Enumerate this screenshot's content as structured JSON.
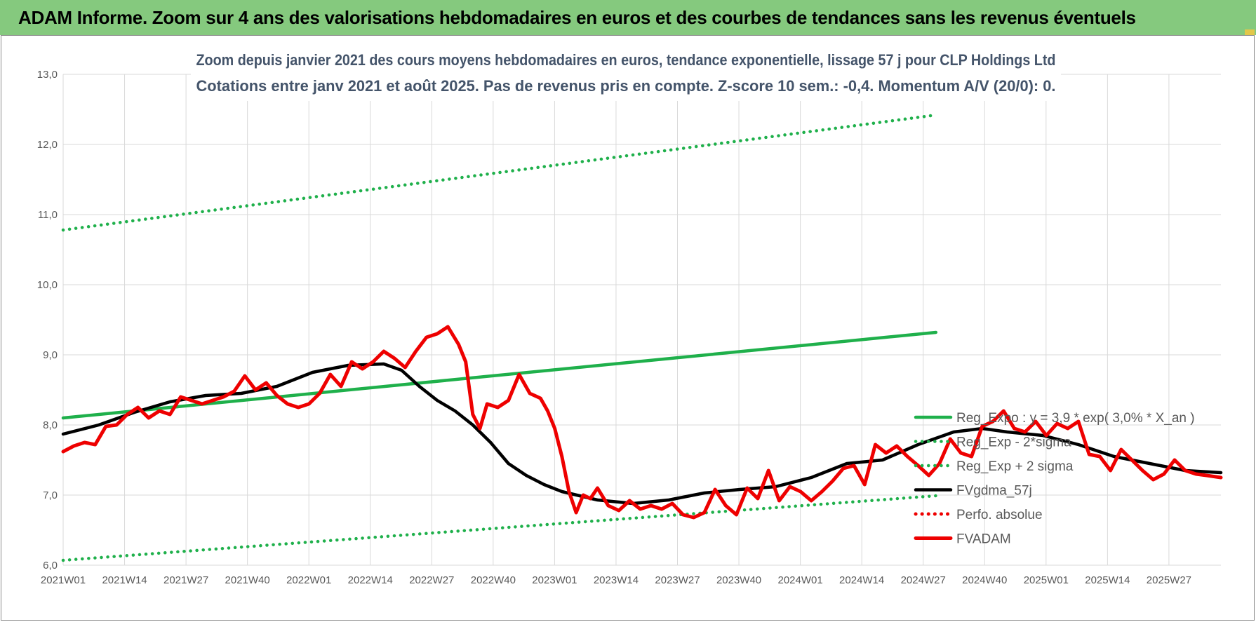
{
  "banner": {
    "title": "ADAM Informe. Zoom sur 4 ans des valorisations hebdomadaires en euros et des courbes de tendances sans les revenus éventuels"
  },
  "colors": {
    "banner_bg": "#85c97e",
    "trend_green": "#1fb04b",
    "price_red": "#ee0000",
    "smooth_black": "#000000",
    "title_text": "#44546a",
    "grid": "#d9d9d9"
  },
  "chart_data": {
    "type": "line",
    "title": "Zoom depuis janvier 2021 des cours moyens hebdomadaires en euros, tendance exponentielle, lissage 57 j pour CLP Holdings Ltd",
    "subtitle": "Cotations entre janv 2021 et août 2025.  Pas de revenus pris en compte. Z-score 10 sem.: -0,4. Momentum A/V (20/0): 0.",
    "xlabel": "",
    "ylabel": "",
    "ylim": [
      6.0,
      13.0
    ],
    "y_ticks": [
      "6,0",
      "7,0",
      "8,0",
      "9,0",
      "10,0",
      "11,0",
      "12,0",
      "13,0"
    ],
    "x_ticks": [
      "2021W01",
      "2021W14",
      "2021W27",
      "2021W40",
      "2022W01",
      "2022W14",
      "2022W27",
      "2022W40",
      "2023W01",
      "2023W14",
      "2023W27",
      "2023W40",
      "2024W01",
      "2024W14",
      "2024W27",
      "2024W40",
      "2025W01",
      "2025W14",
      "2025W27"
    ],
    "week_count": 246,
    "grid": true,
    "legend_position": "right",
    "series": [
      {
        "name": "Reg_Expo : y = 3,9 * exp( 3,0% *  X_an )",
        "style": "solid",
        "color": "#1fb04b",
        "points": [
          [
            0,
            8.1
          ],
          [
            245,
            9.32
          ]
        ]
      },
      {
        "name": "Reg_Exp - 2*sigma",
        "style": "dotted",
        "color": "#1fb04b",
        "points": [
          [
            0,
            6.07
          ],
          [
            245,
            6.99
          ]
        ]
      },
      {
        "name": "Reg_Exp + 2 sigma",
        "style": "dotted",
        "color": "#1fb04b",
        "points": [
          [
            0,
            10.78
          ],
          [
            245,
            12.42
          ]
        ]
      },
      {
        "name": "FVgdma_57j",
        "style": "solid",
        "color": "#000000",
        "points": [
          [
            0,
            7.87
          ],
          [
            10,
            8.0
          ],
          [
            20,
            8.18
          ],
          [
            30,
            8.33
          ],
          [
            40,
            8.42
          ],
          [
            50,
            8.45
          ],
          [
            60,
            8.55
          ],
          [
            70,
            8.75
          ],
          [
            80,
            8.85
          ],
          [
            90,
            8.87
          ],
          [
            95,
            8.78
          ],
          [
            100,
            8.55
          ],
          [
            105,
            8.35
          ],
          [
            110,
            8.2
          ],
          [
            115,
            8.0
          ],
          [
            120,
            7.75
          ],
          [
            125,
            7.45
          ],
          [
            130,
            7.28
          ],
          [
            135,
            7.15
          ],
          [
            140,
            7.05
          ],
          [
            150,
            6.93
          ],
          [
            160,
            6.88
          ],
          [
            170,
            6.93
          ],
          [
            180,
            7.03
          ],
          [
            190,
            7.08
          ],
          [
            200,
            7.12
          ],
          [
            210,
            7.25
          ],
          [
            220,
            7.45
          ],
          [
            230,
            7.5
          ],
          [
            240,
            7.72
          ],
          [
            250,
            7.9
          ],
          [
            258,
            7.95
          ],
          [
            265,
            7.9
          ],
          [
            275,
            7.85
          ],
          [
            285,
            7.72
          ],
          [
            295,
            7.55
          ],
          [
            305,
            7.45
          ],
          [
            315,
            7.35
          ],
          [
            325,
            7.32
          ]
        ]
      },
      {
        "name": "Perfo. absolue",
        "style": "dotted",
        "color": "#ee0000",
        "points": []
      },
      {
        "name": "FVADAM",
        "style": "solid",
        "color": "#ee0000",
        "points": [
          [
            0,
            7.62
          ],
          [
            3,
            7.7
          ],
          [
            6,
            7.75
          ],
          [
            9,
            7.72
          ],
          [
            12,
            7.98
          ],
          [
            15,
            8.0
          ],
          [
            18,
            8.15
          ],
          [
            21,
            8.25
          ],
          [
            24,
            8.1
          ],
          [
            27,
            8.2
          ],
          [
            30,
            8.15
          ],
          [
            33,
            8.4
          ],
          [
            36,
            8.35
          ],
          [
            39,
            8.3
          ],
          [
            42,
            8.35
          ],
          [
            45,
            8.4
          ],
          [
            48,
            8.48
          ],
          [
            51,
            8.7
          ],
          [
            54,
            8.5
          ],
          [
            57,
            8.6
          ],
          [
            60,
            8.42
          ],
          [
            63,
            8.3
          ],
          [
            66,
            8.25
          ],
          [
            69,
            8.3
          ],
          [
            72,
            8.45
          ],
          [
            75,
            8.72
          ],
          [
            78,
            8.55
          ],
          [
            81,
            8.9
          ],
          [
            84,
            8.8
          ],
          [
            87,
            8.9
          ],
          [
            90,
            9.05
          ],
          [
            93,
            8.95
          ],
          [
            96,
            8.82
          ],
          [
            99,
            9.05
          ],
          [
            102,
            9.25
          ],
          [
            105,
            9.3
          ],
          [
            108,
            9.4
          ],
          [
            111,
            9.15
          ],
          [
            113,
            8.9
          ],
          [
            115,
            8.15
          ],
          [
            117,
            7.95
          ],
          [
            119,
            8.3
          ],
          [
            122,
            8.25
          ],
          [
            125,
            8.35
          ],
          [
            128,
            8.72
          ],
          [
            131,
            8.45
          ],
          [
            134,
            8.38
          ],
          [
            136,
            8.2
          ],
          [
            138,
            7.95
          ],
          [
            140,
            7.55
          ],
          [
            142,
            7.05
          ],
          [
            144,
            6.75
          ],
          [
            146,
            7.0
          ],
          [
            148,
            6.95
          ],
          [
            150,
            7.1
          ],
          [
            153,
            6.85
          ],
          [
            156,
            6.78
          ],
          [
            159,
            6.92
          ],
          [
            162,
            6.8
          ],
          [
            165,
            6.85
          ],
          [
            168,
            6.8
          ],
          [
            171,
            6.88
          ],
          [
            174,
            6.72
          ],
          [
            177,
            6.68
          ],
          [
            180,
            6.75
          ],
          [
            183,
            7.08
          ],
          [
            186,
            6.85
          ],
          [
            189,
            6.72
          ],
          [
            192,
            7.1
          ],
          [
            195,
            6.95
          ],
          [
            198,
            7.35
          ],
          [
            201,
            6.92
          ],
          [
            204,
            7.12
          ],
          [
            207,
            7.05
          ],
          [
            210,
            6.92
          ],
          [
            213,
            7.05
          ],
          [
            216,
            7.2
          ],
          [
            219,
            7.38
          ],
          [
            222,
            7.42
          ],
          [
            225,
            7.15
          ],
          [
            228,
            7.72
          ],
          [
            231,
            7.6
          ],
          [
            234,
            7.7
          ],
          [
            237,
            7.55
          ],
          [
            240,
            7.42
          ],
          [
            243,
            7.28
          ],
          [
            246,
            7.45
          ],
          [
            249,
            7.8
          ],
          [
            252,
            7.6
          ],
          [
            255,
            7.55
          ],
          [
            258,
            7.98
          ],
          [
            261,
            8.05
          ],
          [
            264,
            8.2
          ],
          [
            267,
            7.95
          ],
          [
            270,
            7.9
          ],
          [
            273,
            8.05
          ],
          [
            276,
            7.85
          ],
          [
            279,
            8.02
          ],
          [
            282,
            7.95
          ],
          [
            285,
            8.05
          ],
          [
            288,
            7.58
          ],
          [
            291,
            7.55
          ],
          [
            294,
            7.35
          ],
          [
            297,
            7.65
          ],
          [
            300,
            7.5
          ],
          [
            303,
            7.35
          ],
          [
            306,
            7.22
          ],
          [
            309,
            7.3
          ],
          [
            312,
            7.5
          ],
          [
            315,
            7.35
          ],
          [
            318,
            7.3
          ],
          [
            321,
            7.28
          ],
          [
            325,
            7.25
          ]
        ]
      }
    ]
  }
}
